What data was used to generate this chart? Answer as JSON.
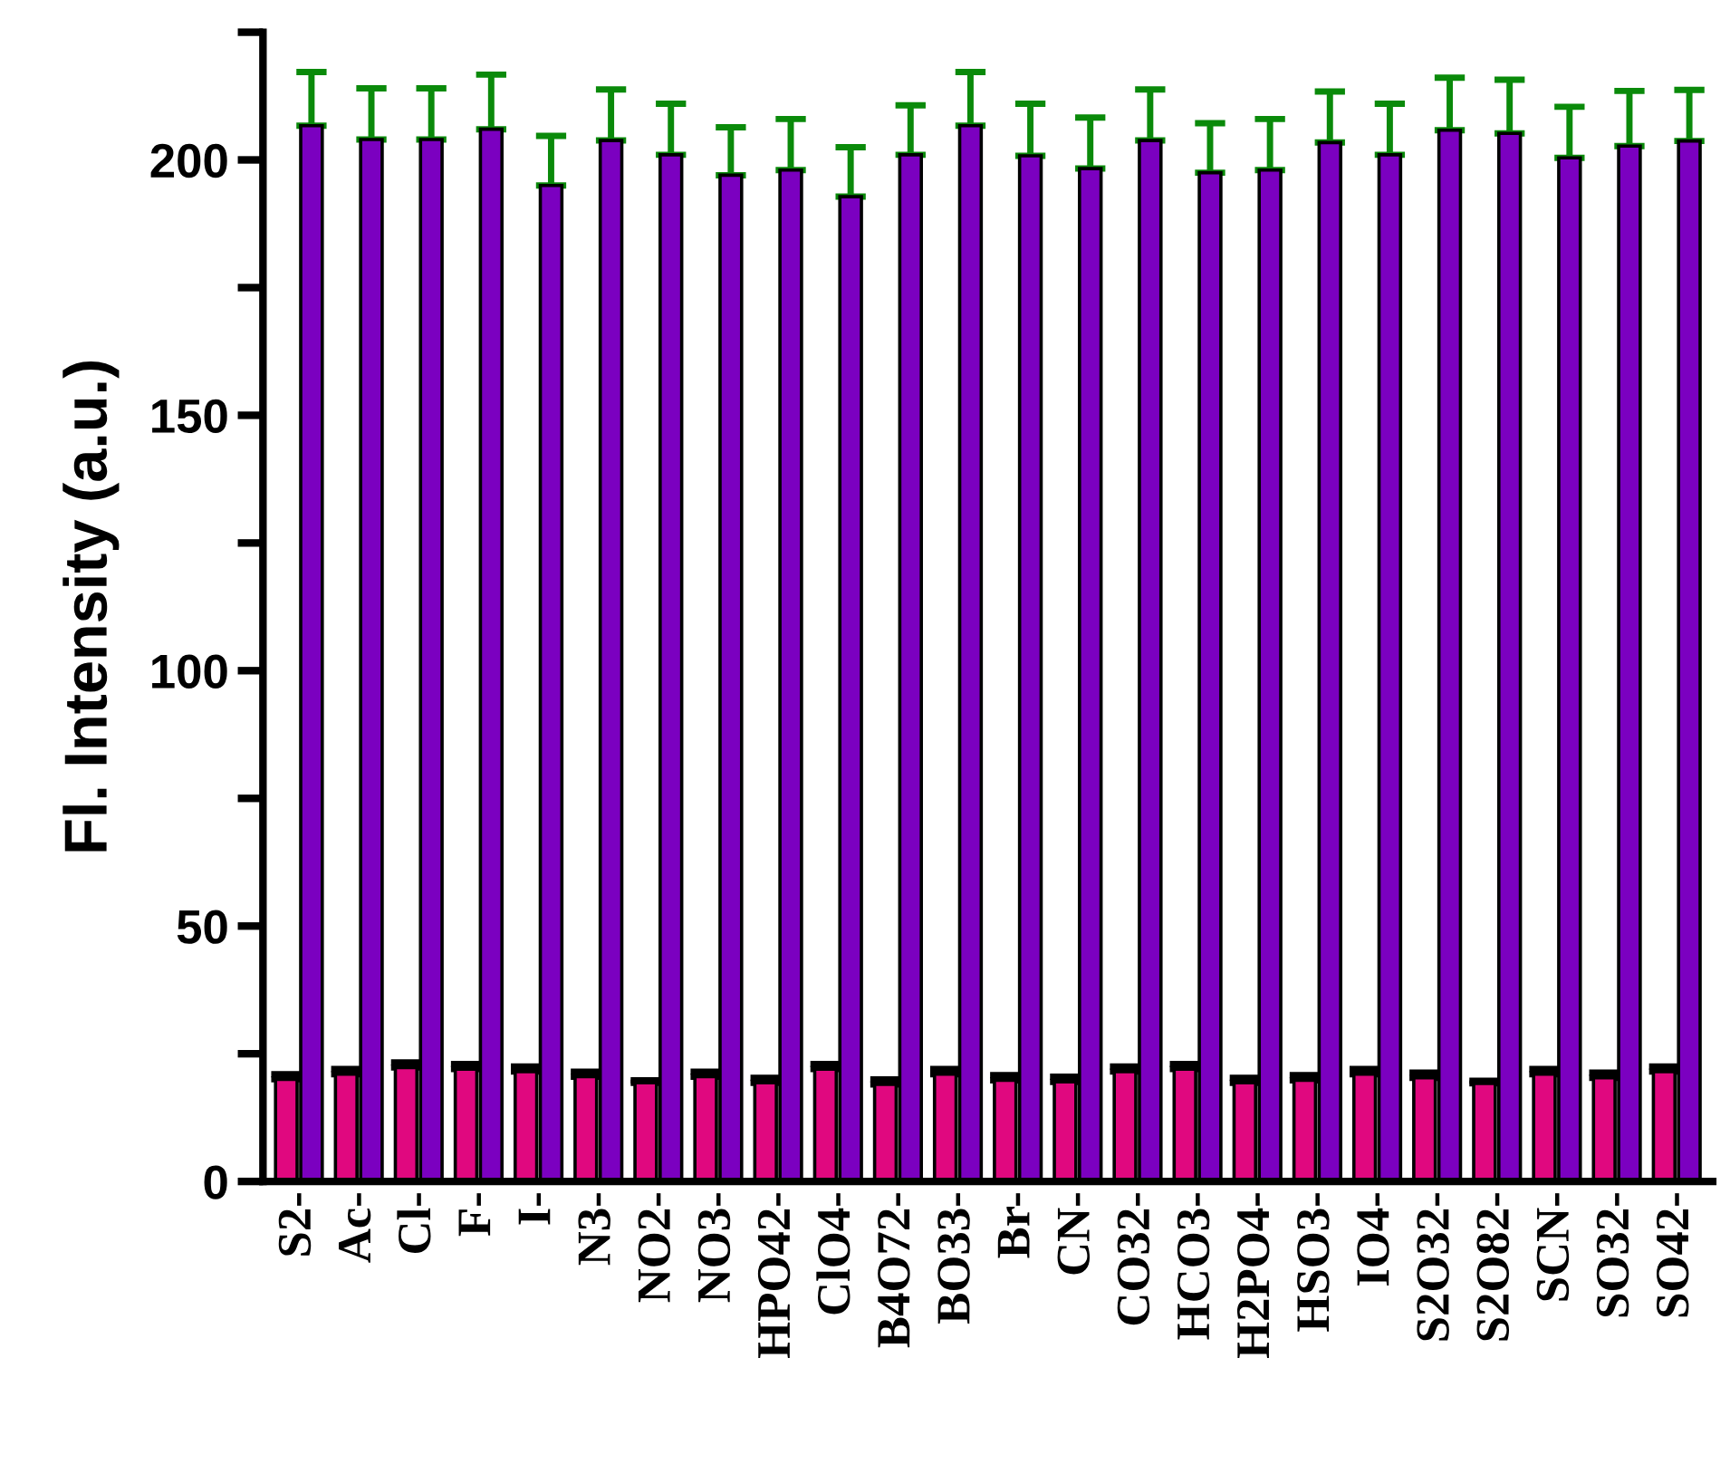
{
  "chart_data": {
    "type": "bar",
    "ylabel": "Fl. Intensity (a.u.)",
    "categories": [
      "S2-",
      "Ac-",
      "Cl-",
      "F-",
      "I-",
      "N3-",
      "NO2-",
      "NO3-",
      "HPO42-",
      "ClO4-",
      "B4O72-",
      "BO33-",
      "Br-",
      "CN-",
      "CO32-",
      "HCO3-",
      "H2PO4-",
      "HSO3-",
      "IO4-",
      "S2O32-",
      "S2O82-",
      "SCN-",
      "SO32-",
      "SO42-"
    ],
    "series": [
      {
        "color": "#e0087f",
        "values": [
          20,
          21,
          22.3,
          22,
          21.5,
          20.5,
          19.3,
          20.5,
          19.3,
          22,
          19,
          21,
          19.8,
          19.5,
          21.5,
          22,
          19.3,
          19.8,
          21,
          20.3,
          19.2,
          21,
          20.3,
          21.5
        ],
        "errors": [
          1,
          1,
          1,
          1,
          1,
          1,
          0.5,
          1,
          1,
          1,
          1,
          1,
          1,
          1,
          1,
          1,
          1,
          1,
          1,
          1,
          0.5,
          1,
          1,
          1
        ]
      },
      {
        "color": "#7b00c0",
        "values": [
          206.7,
          204,
          204,
          206,
          195,
          203.8,
          201,
          197,
          198,
          192.8,
          201,
          206.7,
          200.8,
          198.3,
          203.8,
          197.5,
          198,
          203.4,
          201,
          205.8,
          205.2,
          200.4,
          202.7,
          203.7
        ],
        "errors": [
          10.5,
          10,
          10,
          10.7,
          9.7,
          10,
          10,
          9.4,
          10,
          9.7,
          9.7,
          10.5,
          10.2,
          10,
          10,
          9.7,
          10,
          10,
          10,
          10.3,
          10.5,
          10,
          10.8,
          10
        ]
      }
    ],
    "ylim": [
      0,
      225
    ],
    "yticks": [
      0,
      {
        "value": 25,
        "label": null
      },
      50,
      {
        "value": 75,
        "label": null
      },
      100,
      {
        "value": 125,
        "label": null
      },
      150,
      {
        "value": 175,
        "label": null
      },
      200,
      {
        "value": 225,
        "label": null
      }
    ],
    "grid": false
  }
}
